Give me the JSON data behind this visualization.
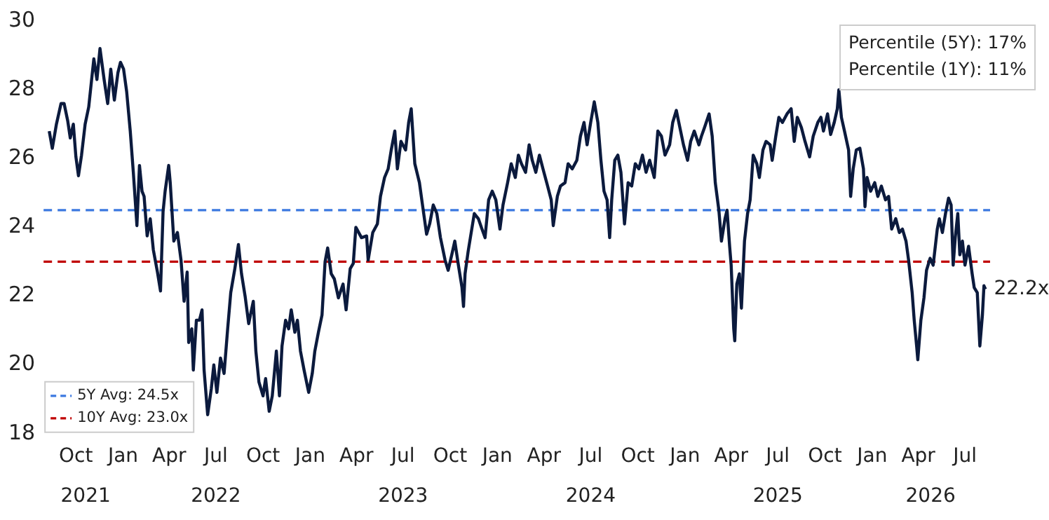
{
  "chart_data": {
    "type": "line",
    "xlim": [
      "2021-07-30",
      "2026-08-19"
    ],
    "xticks": [
      {
        "value": "2021-10-01",
        "label": "Oct"
      },
      {
        "value": "2022-01-01",
        "label": "Jan"
      },
      {
        "value": "2022-04-01",
        "label": "Apr"
      },
      {
        "value": "2022-07-01",
        "label": "Jul"
      },
      {
        "value": "2022-10-01",
        "label": "Oct"
      },
      {
        "value": "2023-01-01",
        "label": "Jan"
      },
      {
        "value": "2023-04-01",
        "label": "Apr"
      },
      {
        "value": "2023-07-01",
        "label": "Jul"
      },
      {
        "value": "2023-10-01",
        "label": "Oct"
      },
      {
        "value": "2024-01-01",
        "label": "Jan"
      },
      {
        "value": "2024-04-01",
        "label": "Apr"
      },
      {
        "value": "2024-07-01",
        "label": "Jul"
      },
      {
        "value": "2024-10-01",
        "label": "Oct"
      },
      {
        "value": "2025-01-01",
        "label": "Jan"
      },
      {
        "value": "2025-04-01",
        "label": "Apr"
      },
      {
        "value": "2025-07-01",
        "label": "Jul"
      },
      {
        "value": "2025-10-01",
        "label": "Oct"
      },
      {
        "value": "2026-01-01",
        "label": "Jan"
      },
      {
        "value": "2026-04-01",
        "label": "Apr"
      },
      {
        "value": "2026-07-01",
        "label": "Jul"
      }
    ],
    "x2lim": [
      "2021-07-30",
      "2026-08-19"
    ],
    "x2ticks": [
      {
        "value": "2021-10-20",
        "label": "2021"
      },
      {
        "value": "2022-07-01",
        "label": "2022"
      },
      {
        "value": "2023-07-01",
        "label": "2023"
      },
      {
        "value": "2024-07-01",
        "label": "2024"
      },
      {
        "value": "2025-07-01",
        "label": "2025"
      },
      {
        "value": "2026-04-25",
        "label": "2026"
      }
    ],
    "ylim": [
      18,
      30
    ],
    "yticks": [
      18,
      20,
      22,
      24,
      26,
      28,
      30
    ],
    "grid": false,
    "legend": "bottom left",
    "series": [
      {
        "color": "#0b1a3d",
        "x": [
          "2021-08-10",
          "2021-08-16",
          "2021-08-24",
          "2021-09-02",
          "2021-09-08",
          "2021-09-15",
          "2021-09-20",
          "2021-09-26",
          "2021-10-01",
          "2021-10-06",
          "2021-10-12",
          "2021-10-19",
          "2021-10-26",
          "2021-10-31",
          "2021-11-05",
          "2021-11-11",
          "2021-11-17",
          "2021-11-25",
          "2021-12-02",
          "2021-12-08",
          "2021-12-15",
          "2021-12-22",
          "2021-12-27",
          "2022-01-02",
          "2022-01-08",
          "2022-01-15",
          "2022-01-21",
          "2022-01-26",
          "2022-01-28",
          "2022-02-02",
          "2022-02-07",
          "2022-02-11",
          "2022-02-17",
          "2022-02-23",
          "2022-03-01",
          "2022-03-09",
          "2022-03-15",
          "2022-03-20",
          "2022-03-24",
          "2022-03-31",
          "2022-04-03",
          "2022-04-10",
          "2022-04-17",
          "2022-04-24",
          "2022-04-30",
          "2022-05-06",
          "2022-05-09",
          "2022-05-15",
          "2022-05-18",
          "2022-05-24",
          "2022-05-30",
          "2022-06-04",
          "2022-06-08",
          "2022-06-15",
          "2022-06-22",
          "2022-06-27",
          "2022-07-03",
          "2022-07-10",
          "2022-07-17",
          "2022-07-24",
          "2022-07-30",
          "2022-08-07",
          "2022-08-14",
          "2022-08-20",
          "2022-08-27",
          "2022-09-03",
          "2022-09-12",
          "2022-09-17",
          "2022-09-23",
          "2022-10-01",
          "2022-10-06",
          "2022-10-13",
          "2022-10-19",
          "2022-10-27",
          "2022-11-02",
          "2022-11-07",
          "2022-11-14",
          "2022-11-20",
          "2022-11-25",
          "2022-12-02",
          "2022-12-07",
          "2022-12-13",
          "2022-12-20",
          "2022-12-29",
          "2023-01-05",
          "2023-01-10",
          "2023-01-17",
          "2023-01-24",
          "2023-01-30",
          "2023-02-04",
          "2023-02-11",
          "2023-02-17",
          "2023-02-25",
          "2023-03-06",
          "2023-03-12",
          "2023-03-20",
          "2023-03-26",
          "2023-03-31",
          "2023-04-11",
          "2023-04-21",
          "2023-04-24",
          "2023-05-03",
          "2023-05-12",
          "2023-05-18",
          "2023-05-26",
          "2023-06-02",
          "2023-06-08",
          "2023-06-15",
          "2023-06-20",
          "2023-06-27",
          "2023-07-06",
          "2023-07-12",
          "2023-07-17",
          "2023-07-24",
          "2023-08-02",
          "2023-08-08",
          "2023-08-16",
          "2023-08-22",
          "2023-08-29",
          "2023-09-05",
          "2023-09-12",
          "2023-09-21",
          "2023-09-27",
          "2023-10-04",
          "2023-10-10",
          "2023-10-17",
          "2023-10-24",
          "2023-10-27",
          "2023-10-30",
          "2023-11-05",
          "2023-11-11",
          "2023-11-17",
          "2023-11-25",
          "2023-12-02",
          "2023-12-08",
          "2023-12-15",
          "2023-12-22",
          "2023-12-29",
          "2024-01-06",
          "2024-01-12",
          "2024-01-21",
          "2024-01-28",
          "2024-02-05",
          "2024-02-11",
          "2024-02-17",
          "2024-02-25",
          "2024-03-03",
          "2024-03-09",
          "2024-03-16",
          "2024-03-23",
          "2024-03-30",
          "2024-04-08",
          "2024-04-15",
          "2024-04-19",
          "2024-04-27",
          "2024-05-03",
          "2024-05-12",
          "2024-05-18",
          "2024-05-26",
          "2024-06-04",
          "2024-06-11",
          "2024-06-18",
          "2024-06-24",
          "2024-07-01",
          "2024-07-08",
          "2024-07-15",
          "2024-07-21",
          "2024-07-27",
          "2024-08-02",
          "2024-08-07",
          "2024-08-11",
          "2024-08-17",
          "2024-08-23",
          "2024-08-29",
          "2024-09-05",
          "2024-09-12",
          "2024-09-19",
          "2024-09-26",
          "2024-10-03",
          "2024-10-10",
          "2024-10-17",
          "2024-10-24",
          "2024-11-02",
          "2024-11-09",
          "2024-11-16",
          "2024-11-23",
          "2024-12-02",
          "2024-12-08",
          "2024-12-15",
          "2024-12-22",
          "2024-12-29",
          "2025-01-06",
          "2025-01-12",
          "2025-01-19",
          "2025-01-28",
          "2025-02-02",
          "2025-02-08",
          "2025-02-17",
          "2025-02-23",
          "2025-03-01",
          "2025-03-08",
          "2025-03-13",
          "2025-03-20",
          "2025-03-24",
          "2025-03-29",
          "2025-04-01",
          "2025-04-06",
          "2025-04-08",
          "2025-04-12",
          "2025-04-17",
          "2025-04-21",
          "2025-04-27",
          "2025-05-03",
          "2025-05-08",
          "2025-05-14",
          "2025-05-21",
          "2025-05-26",
          "2025-06-02",
          "2025-06-08",
          "2025-06-16",
          "2025-06-20",
          "2025-06-27",
          "2025-07-03",
          "2025-07-10",
          "2025-07-19",
          "2025-07-27",
          "2025-08-02",
          "2025-08-08",
          "2025-08-16",
          "2025-08-23",
          "2025-09-01",
          "2025-09-08",
          "2025-09-17",
          "2025-09-23",
          "2025-09-28",
          "2025-10-06",
          "2025-10-12",
          "2025-10-19",
          "2025-10-25",
          "2025-10-28",
          "2025-11-02",
          "2025-11-08",
          "2025-11-16",
          "2025-11-20",
          "2025-11-25",
          "2025-12-01",
          "2025-12-08",
          "2025-12-15",
          "2025-12-18",
          "2025-12-22",
          "2025-12-29",
          "2026-01-06",
          "2026-01-12",
          "2026-01-19",
          "2026-01-27",
          "2026-02-02",
          "2026-02-08",
          "2026-02-16",
          "2026-02-23",
          "2026-03-01",
          "2026-03-08",
          "2026-03-13",
          "2026-03-20",
          "2026-03-24",
          "2026-03-29",
          "2026-03-31",
          "2026-04-06",
          "2026-04-12",
          "2026-04-17",
          "2026-04-24",
          "2026-04-30",
          "2026-05-08",
          "2026-05-12",
          "2026-05-18",
          "2026-05-24",
          "2026-05-30",
          "2026-06-04",
          "2026-06-08",
          "2026-06-12",
          "2026-06-17",
          "2026-06-21",
          "2026-06-26",
          "2026-07-01",
          "2026-07-08",
          "2026-07-15",
          "2026-07-19",
          "2026-07-25",
          "2026-07-30",
          "2026-08-04",
          "2026-08-07",
          "2026-08-10"
        ],
        "values": [
          26.8,
          26.3,
          27.0,
          27.6,
          27.6,
          27.1,
          26.6,
          27.0,
          26.05,
          25.5,
          26.1,
          27.0,
          27.5,
          28.2,
          28.9,
          28.3,
          29.2,
          28.3,
          27.6,
          28.6,
          27.7,
          28.5,
          28.8,
          28.6,
          27.95,
          26.8,
          25.6,
          24.5,
          24.05,
          25.8,
          25.05,
          24.9,
          23.75,
          24.25,
          23.35,
          22.7,
          22.15,
          24.45,
          25.05,
          25.8,
          25.3,
          23.6,
          23.85,
          23.05,
          21.85,
          22.7,
          20.65,
          21.05,
          19.85,
          21.3,
          21.3,
          21.6,
          19.85,
          18.55,
          19.3,
          20.0,
          19.2,
          20.2,
          19.75,
          21.05,
          22.1,
          22.8,
          23.5,
          22.65,
          22.0,
          21.2,
          21.85,
          20.4,
          19.5,
          19.1,
          19.6,
          18.65,
          19.1,
          20.4,
          19.1,
          20.55,
          21.3,
          21.05,
          21.6,
          20.95,
          21.3,
          20.4,
          19.85,
          19.2,
          19.75,
          20.4,
          20.95,
          21.45,
          23.0,
          23.4,
          22.65,
          22.5,
          21.95,
          22.35,
          21.6,
          22.8,
          22.95,
          24.0,
          23.7,
          23.75,
          23.05,
          23.85,
          24.1,
          24.9,
          25.45,
          25.7,
          26.25,
          26.8,
          25.7,
          26.5,
          26.25,
          27.05,
          27.45,
          25.85,
          25.3,
          24.65,
          23.8,
          24.1,
          24.65,
          24.4,
          23.7,
          23.05,
          22.75,
          23.2,
          23.6,
          22.9,
          22.25,
          21.7,
          22.65,
          23.3,
          23.85,
          24.4,
          24.25,
          23.95,
          23.7,
          24.8,
          25.05,
          24.8,
          23.95,
          24.65,
          25.3,
          25.85,
          25.45,
          26.1,
          25.85,
          25.6,
          26.4,
          25.95,
          25.6,
          26.1,
          25.7,
          25.2,
          24.8,
          24.05,
          24.9,
          25.2,
          25.3,
          25.85,
          25.7,
          25.95,
          26.65,
          27.05,
          26.4,
          27.05,
          27.65,
          27.05,
          25.95,
          25.05,
          24.8,
          23.7,
          24.8,
          25.95,
          26.1,
          25.6,
          24.1,
          25.3,
          25.2,
          25.85,
          25.7,
          26.1,
          25.6,
          25.95,
          25.45,
          26.8,
          26.65,
          26.1,
          26.4,
          27.05,
          27.4,
          26.9,
          26.4,
          25.95,
          26.5,
          26.8,
          26.4,
          26.65,
          26.9,
          27.3,
          26.65,
          25.3,
          24.5,
          23.6,
          24.25,
          24.5,
          23.45,
          22.9,
          21.05,
          20.7,
          22.35,
          22.65,
          21.65,
          23.6,
          24.4,
          24.8,
          26.1,
          25.85,
          25.45,
          26.25,
          26.5,
          26.4,
          25.95,
          26.65,
          27.2,
          27.05,
          27.3,
          27.45,
          26.5,
          27.2,
          26.9,
          26.5,
          26.05,
          26.65,
          27.05,
          27.2,
          26.8,
          27.3,
          26.7,
          27.05,
          27.45,
          28.0,
          27.2,
          26.8,
          26.25,
          24.9,
          25.7,
          26.25,
          26.3,
          25.7,
          24.6,
          25.45,
          25.05,
          25.3,
          24.9,
          25.2,
          24.8,
          24.9,
          23.95,
          24.25,
          23.85,
          23.95,
          23.6,
          23.05,
          22.1,
          21.3,
          20.5,
          20.15,
          21.3,
          21.95,
          22.75,
          23.1,
          22.9,
          23.95,
          24.25,
          23.85,
          24.4,
          24.85,
          24.65,
          22.9,
          23.7,
          24.4,
          23.2,
          23.6,
          22.9,
          23.45,
          22.65,
          22.25,
          22.1,
          20.55,
          21.45,
          22.3,
          22.2
        ]
      }
    ],
    "ref_lines": [
      {
        "axis": "y",
        "value": 24.5,
        "label": "5Y Avg: 24.5x",
        "color": "#3b78e0",
        "line_style": "dashed"
      },
      {
        "axis": "y",
        "value": 23.0,
        "label": "10Y Avg: 23.0x",
        "color": "#c00000",
        "line_style": "dashed"
      }
    ],
    "annotations": [
      "Percentile (5Y): 17%",
      "Percentile (1Y): 11%",
      {
        "text": "22.2x",
        "x": "2026-08-10",
        "y": 22.2
      }
    ]
  }
}
